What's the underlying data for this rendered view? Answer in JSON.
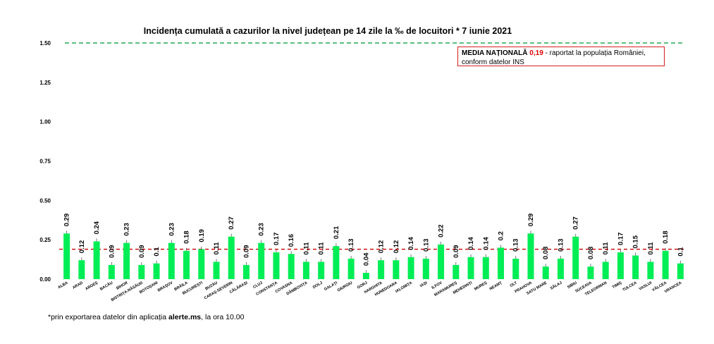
{
  "title": "Incidența cumulată a cazurilor la nivel județean pe 14 zile la ‰ de locuitori *  7 iunie 2021",
  "note": {
    "label": "MEDIA NAȚIONALĂ",
    "value": "0,19",
    "text_line1": " - raportat la populația României,",
    "text_line2": "conform datelor INS"
  },
  "footnote": {
    "prefix": "*prin exportarea datelor din aplicația ",
    "app": "alerte.ms",
    "suffix": ", la ora 10.00"
  },
  "colors": {
    "bar": "#00ee55",
    "reference_line": "#cc0000",
    "top_line": "#22aa55",
    "leader": "#555555"
  },
  "chart_data": {
    "type": "bar",
    "title": "Incidența cumulată a cazurilor la nivel județean pe 14 zile la ‰ de locuitori *  7 iunie 2021",
    "xlabel": "",
    "ylabel": "",
    "ylim": [
      0,
      1.5
    ],
    "yticks": [
      "0.00",
      "0.25",
      "0.50",
      "0.75",
      "1.00",
      "1.25",
      "1.50"
    ],
    "grid": false,
    "reference_lines": [
      {
        "value": 1.5,
        "style": "dashed",
        "color": "#22aa55"
      },
      {
        "value": 0.19,
        "style": "dashed",
        "color": "#cc0000"
      }
    ],
    "categories": [
      "ALBA",
      "ARAD",
      "ARGEȘ",
      "BACĂU",
      "BIHOR",
      "BISTRIȚA-NĂSĂUD",
      "BOTOȘANI",
      "BRAȘOV",
      "BRĂILA",
      "BUCUREȘTI",
      "BUZĂU",
      "CARAȘ-SEVERIN",
      "CĂLĂRAȘI",
      "CLUJ",
      "CONSTANȚA",
      "COVASNA",
      "DÂMBOVIȚA",
      "DOLJ",
      "GALAȚI",
      "GIURGIU",
      "GORJ",
      "HARGHITA",
      "HUNEDOARA",
      "IALOMIȚA",
      "IAȘI",
      "ILFOV",
      "MARAMUREȘ",
      "MEHEDINȚI",
      "MUREȘ",
      "NEAMȚ",
      "OLT",
      "PRAHOVA",
      "SATU MARE",
      "SĂLAJ",
      "SIBIU",
      "SUCEAVA",
      "TELEORMAN",
      "TIMIȘ",
      "TULCEA",
      "VASLUI",
      "VÂLCEA",
      "VRANCEA"
    ],
    "values": [
      0.29,
      0.12,
      0.24,
      0.09,
      0.23,
      0.09,
      0.1,
      0.23,
      0.18,
      0.19,
      0.11,
      0.27,
      0.09,
      0.23,
      0.17,
      0.16,
      0.11,
      0.11,
      0.21,
      0.13,
      0.04,
      0.12,
      0.12,
      0.14,
      0.13,
      0.22,
      0.09,
      0.14,
      0.14,
      0.2,
      0.13,
      0.29,
      0.08,
      0.13,
      0.27,
      0.08,
      0.11,
      0.17,
      0.15,
      0.11,
      0.18,
      0.1
    ],
    "data_labels": [
      "0.29",
      "0.12",
      "0.24",
      "0.09",
      "0.23",
      "0.09",
      "0.1",
      "0.23",
      "0.18",
      "0.19",
      "0.11",
      "0.27",
      "0.09",
      "0.23",
      "0.17",
      "0.16",
      "0.11",
      "0.11",
      "0.21",
      "0.13",
      "0.04",
      "0.12",
      "0.12",
      "0.14",
      "0.13",
      "0.22",
      "0.09",
      "0.14",
      "0.14",
      "0.2",
      "0.13",
      "0.29",
      "0.08",
      "0.13",
      "0.27",
      "0.08",
      "0.11",
      "0.17",
      "0.15",
      "0.11",
      "0.18",
      "0.1"
    ]
  }
}
